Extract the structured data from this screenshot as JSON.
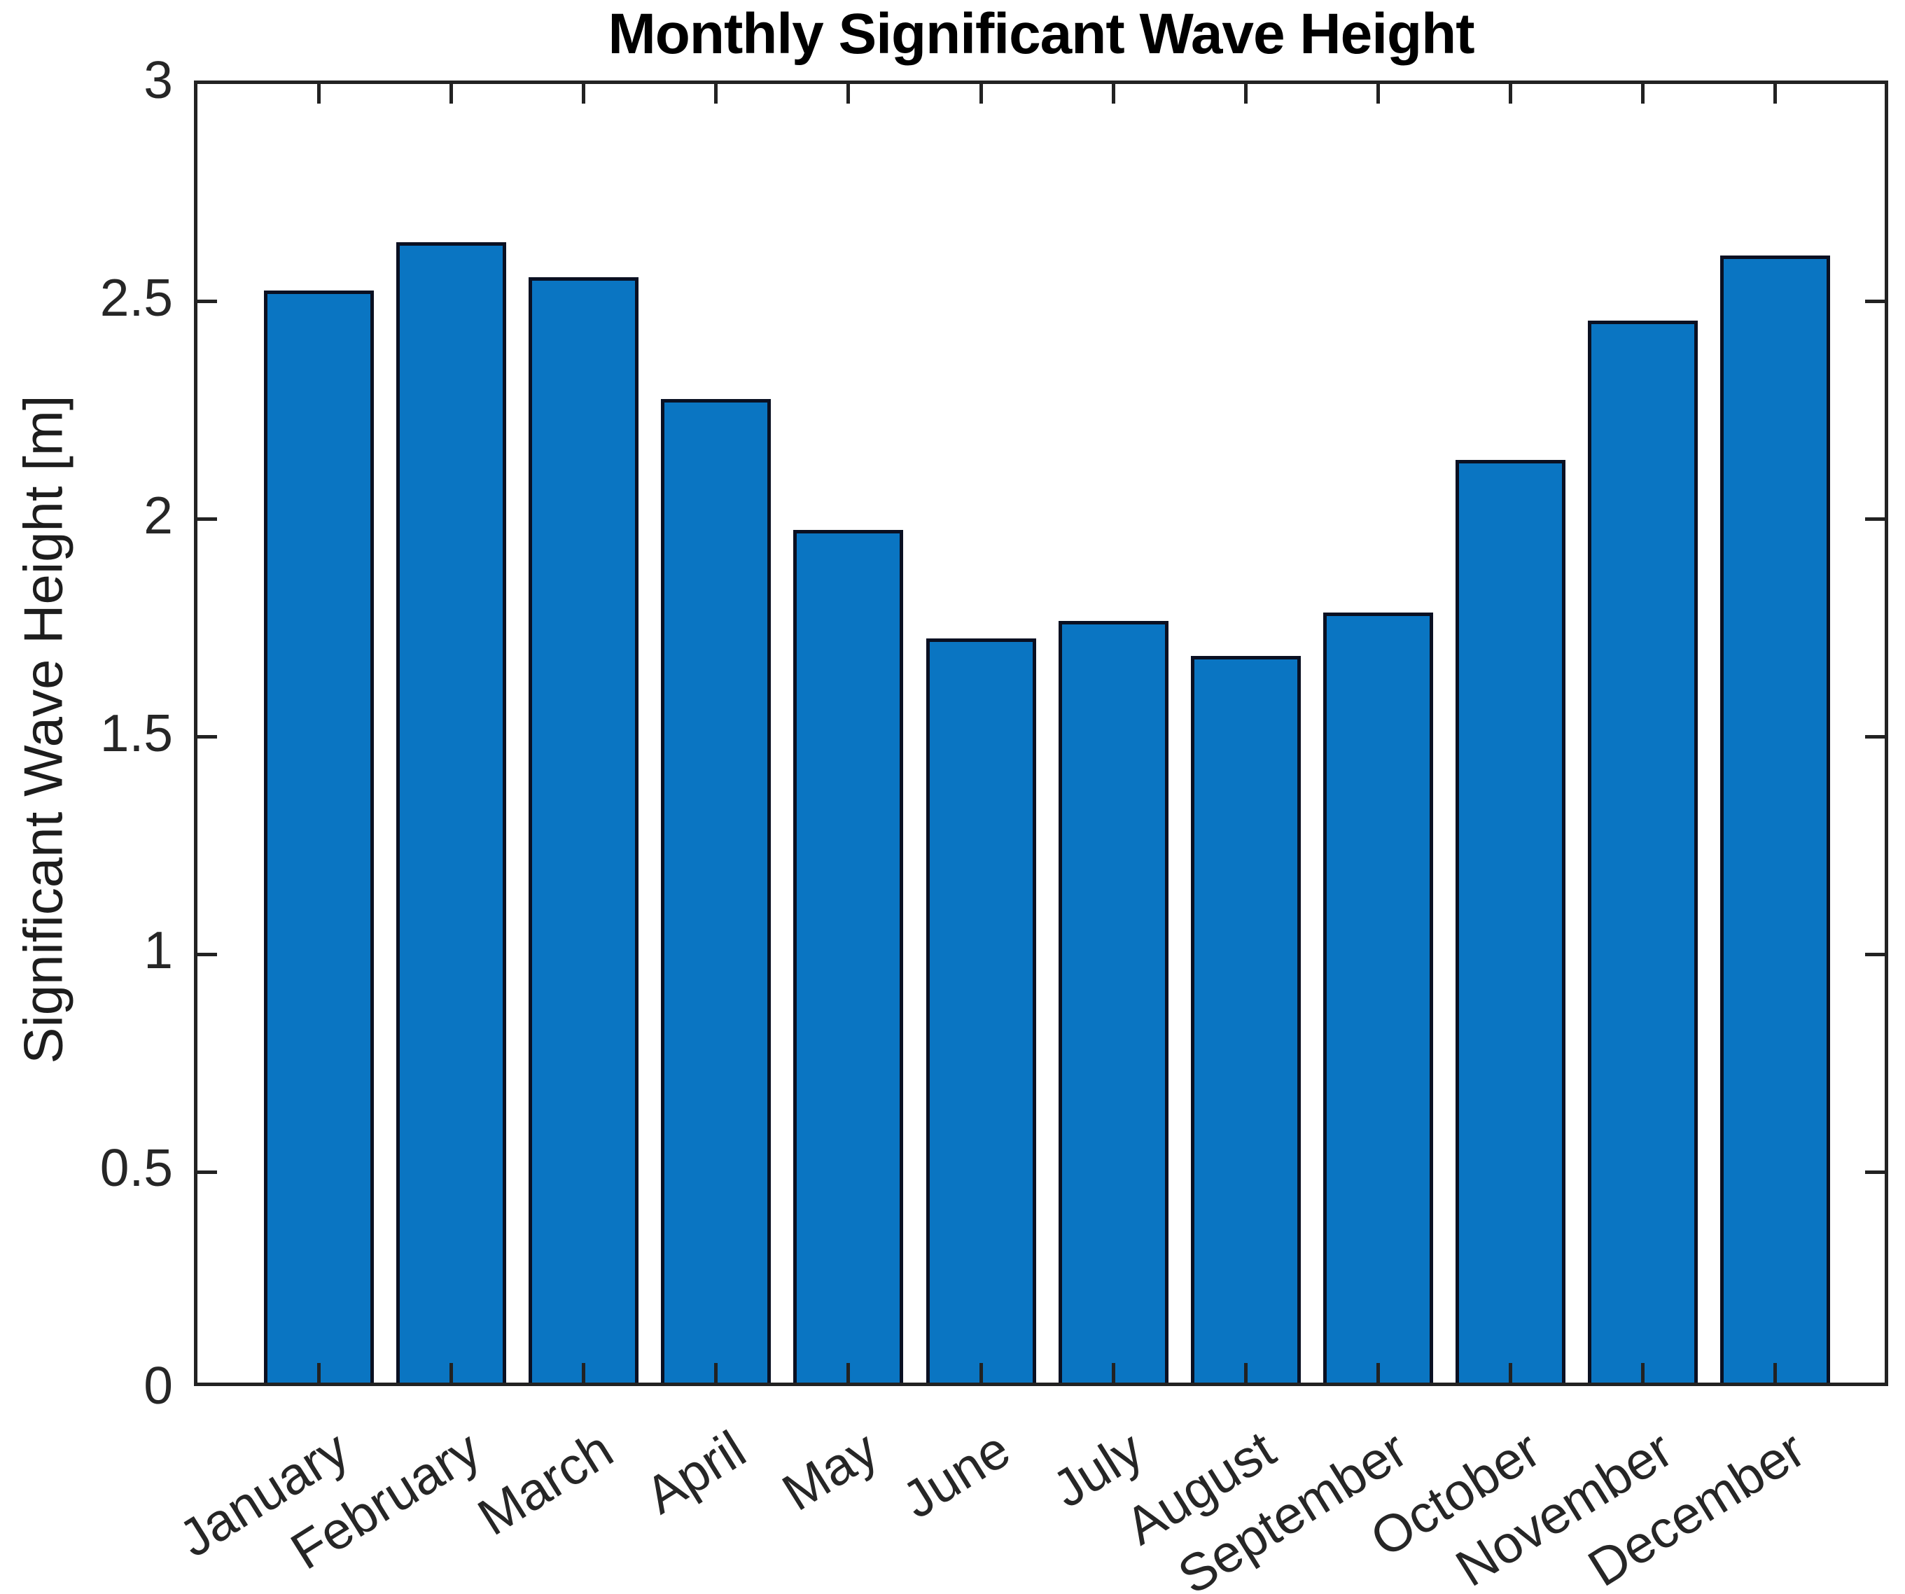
{
  "chart_data": {
    "type": "bar",
    "title": "Monthly Significant Wave Height",
    "xlabel": "",
    "ylabel": "Significant Wave Height [m]",
    "categories": [
      "January",
      "February",
      "March",
      "April",
      "May",
      "June",
      "July",
      "August",
      "September",
      "October",
      "November",
      "December"
    ],
    "values": [
      2.51,
      2.62,
      2.54,
      2.26,
      1.96,
      1.71,
      1.75,
      1.67,
      1.77,
      2.12,
      2.44,
      2.59
    ],
    "series_name": "Significant Wave Height [m]",
    "ylim": [
      0,
      3
    ],
    "yticks": [
      "0",
      "0.5",
      "1",
      "1.5",
      "2",
      "2.5",
      "3"
    ],
    "ytick_values": [
      0,
      0.5,
      1,
      1.5,
      2,
      2.5,
      3
    ],
    "xtick_rotation_deg": 32,
    "grid": false,
    "legend": null,
    "bar_fill_color": "#0A75C2",
    "bar_edge_color": "#0A1022",
    "axis_color": "#222222",
    "text_color": "#262626",
    "title_color": "#000000",
    "background_color": "#FFFFFF"
  }
}
